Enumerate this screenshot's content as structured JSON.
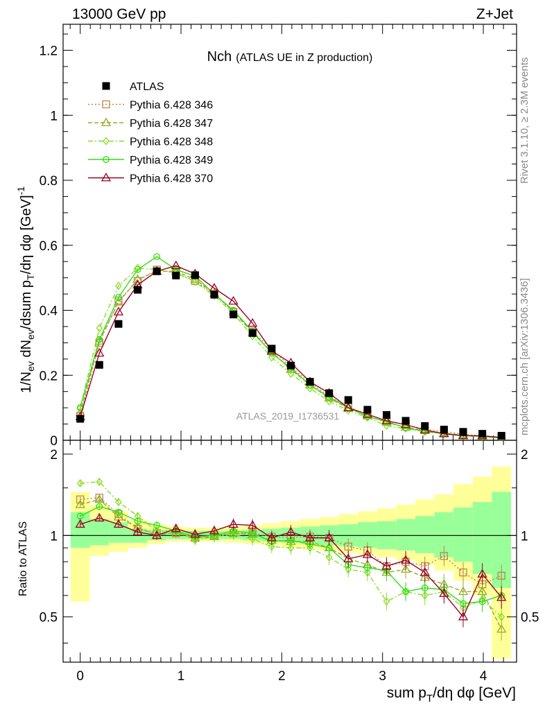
{
  "header": {
    "left_label": "13000 GeV pp",
    "right_label": "Z+Jet",
    "side_top": "Rivet 3.1.10, ≥ 2.3M events",
    "side_bottom": "mcplots.cern.ch [arXiv:1306.3436]",
    "watermark": "ATLAS_2019_I1736531"
  },
  "chart_data": {
    "type": "line",
    "title": "Nch",
    "subtitle": "(ATLAS UE in Z production)",
    "xlabel": "sum p_T/dη dφ [GeV]",
    "ylabel": "1/N_ev dN_ev/dsum p_T/dη dφ [GeV]^-1",
    "ratio_ylabel": "Ratio to ATLAS",
    "xlim": [
      -0.17,
      4.33
    ],
    "ylim": [
      0,
      1.28
    ],
    "ratio_ylim": [
      0.34,
      2.25
    ],
    "x_ticks": [
      "0",
      "1",
      "2",
      "3",
      "4"
    ],
    "y_ticks": [
      "0",
      "0.2",
      "0.4",
      "0.6",
      "0.8",
      "1",
      "1.2"
    ],
    "ratio_ticks": [
      "0.5",
      "1",
      "2"
    ],
    "x": [
      0,
      0.19,
      0.38,
      0.57,
      0.76,
      0.95,
      1.14,
      1.33,
      1.52,
      1.71,
      1.9,
      2.09,
      2.28,
      2.47,
      2.66,
      2.85,
      3.04,
      3.23,
      3.42,
      3.61,
      3.8,
      3.99,
      4.18
    ],
    "data": {
      "name": "ATLAS",
      "values": [
        0.066,
        0.232,
        0.358,
        0.463,
        0.52,
        0.507,
        0.508,
        0.448,
        0.387,
        0.33,
        0.282,
        0.23,
        0.18,
        0.145,
        0.124,
        0.094,
        0.078,
        0.06,
        0.044,
        0.033,
        0.026,
        0.02,
        0.014
      ]
    },
    "series": [
      {
        "name": "Pythia 6.428 346",
        "color": "#b8864b",
        "marker": "square",
        "dash": "2,3",
        "values": [
          0.075,
          0.3,
          0.43,
          0.49,
          0.525,
          0.515,
          0.49,
          0.45,
          0.395,
          0.335,
          0.28,
          0.225,
          0.178,
          0.135,
          0.102,
          0.08,
          0.06,
          0.047,
          0.034,
          0.027,
          0.019,
          0.013,
          0.01
        ]
      },
      {
        "name": "Pythia 6.428 347",
        "color": "#99aa22",
        "marker": "triangle",
        "dash": "6,3",
        "values": [
          0.084,
          0.305,
          0.425,
          0.495,
          0.52,
          0.52,
          0.495,
          0.452,
          0.396,
          0.33,
          0.272,
          0.218,
          0.17,
          0.13,
          0.098,
          0.075,
          0.055,
          0.04,
          0.03,
          0.022,
          0.016,
          0.012,
          0.007
        ]
      },
      {
        "name": "Pythia 6.428 348",
        "color": "#88dd22",
        "marker": "diamond",
        "dash": "7,3,2,3",
        "values": [
          0.1,
          0.345,
          0.475,
          0.53,
          0.525,
          0.515,
          0.487,
          0.445,
          0.39,
          0.32,
          0.255,
          0.205,
          0.16,
          0.12,
          0.092,
          0.07,
          0.045,
          0.036,
          0.026,
          0.02,
          0.014,
          0.011,
          0.007
        ]
      },
      {
        "name": "Pythia 6.428 349",
        "color": "#33dd11",
        "marker": "circle",
        "dash": "",
        "values": [
          0.1,
          0.31,
          0.44,
          0.525,
          0.565,
          0.525,
          0.505,
          0.45,
          0.4,
          0.335,
          0.268,
          0.222,
          0.17,
          0.133,
          0.1,
          0.073,
          0.058,
          0.038,
          0.028,
          0.021,
          0.015,
          0.011,
          0.008
        ]
      },
      {
        "name": "Pythia 6.428 370",
        "color": "#990022",
        "marker": "triangle",
        "dash": "",
        "values": [
          0.072,
          0.268,
          0.395,
          0.478,
          0.52,
          0.537,
          0.512,
          0.468,
          0.428,
          0.36,
          0.275,
          0.238,
          0.18,
          0.145,
          0.1,
          0.08,
          0.06,
          0.048,
          0.032,
          0.02,
          0.014,
          0.014,
          0.008
        ]
      }
    ],
    "ratio_series": [
      [
        1.36,
        1.38,
        1.2,
        1.06,
        1.02,
        1.02,
        0.98,
        1.0,
        1.02,
        1.02,
        0.99,
        0.98,
        0.99,
        0.98,
        0.91,
        0.88,
        0.77,
        0.8,
        0.77,
        0.84,
        0.73,
        0.66,
        0.71
      ],
      [
        1.3,
        1.36,
        1.17,
        1.07,
        1.0,
        1.03,
        0.98,
        0.99,
        1.02,
        1.01,
        0.96,
        0.95,
        0.95,
        0.9,
        0.82,
        0.78,
        0.73,
        0.75,
        0.7,
        0.66,
        0.62,
        0.62,
        0.45
      ],
      [
        1.56,
        1.58,
        1.33,
        1.18,
        1.04,
        1.04,
        0.96,
        0.99,
        1.01,
        0.97,
        0.91,
        0.9,
        0.9,
        0.83,
        0.75,
        0.73,
        0.57,
        0.62,
        0.6,
        0.62,
        0.54,
        0.58,
        0.5
      ],
      [
        1.18,
        1.28,
        1.22,
        1.13,
        1.09,
        1.04,
        0.99,
        1.0,
        1.04,
        1.02,
        0.95,
        0.96,
        0.93,
        0.9,
        0.78,
        0.76,
        0.74,
        0.62,
        0.64,
        0.63,
        0.56,
        0.57,
        0.6
      ],
      [
        1.1,
        1.16,
        1.1,
        1.03,
        1.0,
        1.06,
        1.01,
        1.04,
        1.1,
        1.09,
        0.98,
        1.03,
        0.98,
        0.98,
        0.82,
        0.85,
        0.77,
        0.81,
        0.73,
        0.61,
        0.5,
        0.72,
        0.59
      ]
    ],
    "band_inner": [
      [
        0.9,
        1.22
      ],
      [
        0.92,
        1.15
      ],
      [
        0.94,
        1.12
      ],
      [
        0.94,
        1.06
      ],
      [
        0.96,
        1.05
      ],
      [
        0.97,
        1.04
      ],
      [
        0.97,
        1.04
      ],
      [
        0.97,
        1.04
      ],
      [
        0.97,
        1.04
      ],
      [
        0.96,
        1.05
      ],
      [
        0.95,
        1.06
      ],
      [
        0.94,
        1.07
      ],
      [
        0.93,
        1.08
      ],
      [
        0.92,
        1.09
      ],
      [
        0.91,
        1.1
      ],
      [
        0.9,
        1.12
      ],
      [
        0.89,
        1.13
      ],
      [
        0.88,
        1.15
      ],
      [
        0.86,
        1.18
      ],
      [
        0.83,
        1.22
      ],
      [
        0.8,
        1.27
      ],
      [
        0.72,
        1.33
      ],
      [
        0.64,
        1.45
      ]
    ],
    "band_outer": [
      [
        0.57,
        1.45
      ],
      [
        0.84,
        1.3
      ],
      [
        0.87,
        1.23
      ],
      [
        0.9,
        1.14
      ],
      [
        0.93,
        1.1
      ],
      [
        0.95,
        1.08
      ],
      [
        0.95,
        1.07
      ],
      [
        0.95,
        1.07
      ],
      [
        0.94,
        1.08
      ],
      [
        0.93,
        1.09
      ],
      [
        0.92,
        1.11
      ],
      [
        0.9,
        1.13
      ],
      [
        0.89,
        1.15
      ],
      [
        0.88,
        1.17
      ],
      [
        0.86,
        1.2
      ],
      [
        0.85,
        1.23
      ],
      [
        0.83,
        1.26
      ],
      [
        0.81,
        1.3
      ],
      [
        0.78,
        1.36
      ],
      [
        0.74,
        1.42
      ],
      [
        0.68,
        1.55
      ],
      [
        0.6,
        1.65
      ],
      [
        0.35,
        1.8
      ]
    ]
  }
}
